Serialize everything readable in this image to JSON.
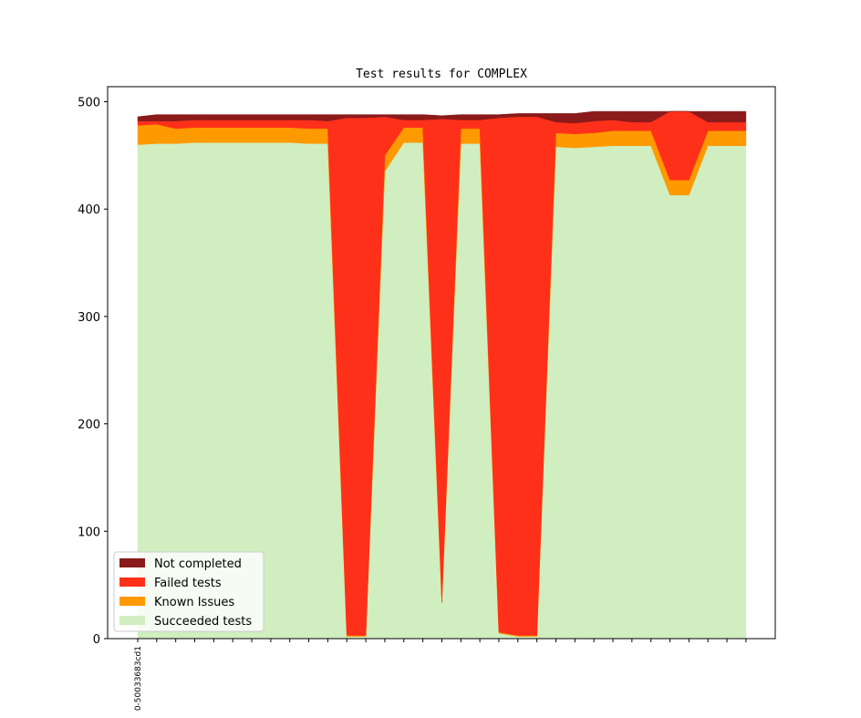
{
  "chart_data": {
    "type": "stacked_area",
    "title": "Test results for COMPLEX",
    "categories": [
      "0-50033683cd1",
      null,
      null,
      null,
      null,
      null,
      null,
      null,
      null,
      null,
      null,
      null,
      null,
      null,
      null,
      null,
      null,
      null,
      null,
      null,
      null,
      null,
      null,
      null,
      null,
      null,
      null,
      null,
      null,
      null,
      null,
      null,
      null
    ],
    "series": [
      {
        "name": "Succeeded tests",
        "color": "#d0eec0",
        "values": [
          460,
          461,
          461,
          462,
          462,
          462,
          462,
          462,
          462,
          461,
          461,
          2,
          2,
          435,
          462,
          462,
          33,
          461,
          461,
          5,
          2,
          2,
          458,
          457,
          458,
          459,
          459,
          459,
          413,
          413,
          459,
          459,
          459
        ]
      },
      {
        "name": "Known Issues",
        "color": "#ff9900",
        "values": [
          18,
          18,
          14,
          14,
          14,
          14,
          14,
          14,
          14,
          14,
          14,
          1,
          1,
          15,
          14,
          14,
          1,
          14,
          14,
          1,
          1,
          1,
          13,
          13,
          13,
          14,
          14,
          14,
          14,
          14,
          14,
          14,
          14
        ]
      },
      {
        "name": "Failed tests",
        "color": "#ff3019",
        "values": [
          4,
          3,
          7,
          7,
          7,
          7,
          7,
          7,
          7,
          8,
          7,
          482,
          482,
          36,
          7,
          7,
          450,
          8,
          8,
          479,
          483,
          483,
          10,
          10,
          11,
          10,
          8,
          8,
          64,
          64,
          8,
          8,
          8
        ]
      },
      {
        "name": "Not completed",
        "color": "#8b1a1a",
        "values": [
          4,
          6,
          6,
          5,
          5,
          5,
          5,
          5,
          5,
          5,
          6,
          3,
          3,
          2,
          5,
          5,
          3,
          5,
          5,
          3,
          3,
          3,
          8,
          9,
          9,
          8,
          10,
          10,
          0,
          0,
          10,
          10,
          10
        ]
      }
    ],
    "ylim": [
      0,
      514
    ],
    "yticks": [
      0,
      100,
      200,
      300,
      400,
      500
    ],
    "legend": "lower left"
  }
}
